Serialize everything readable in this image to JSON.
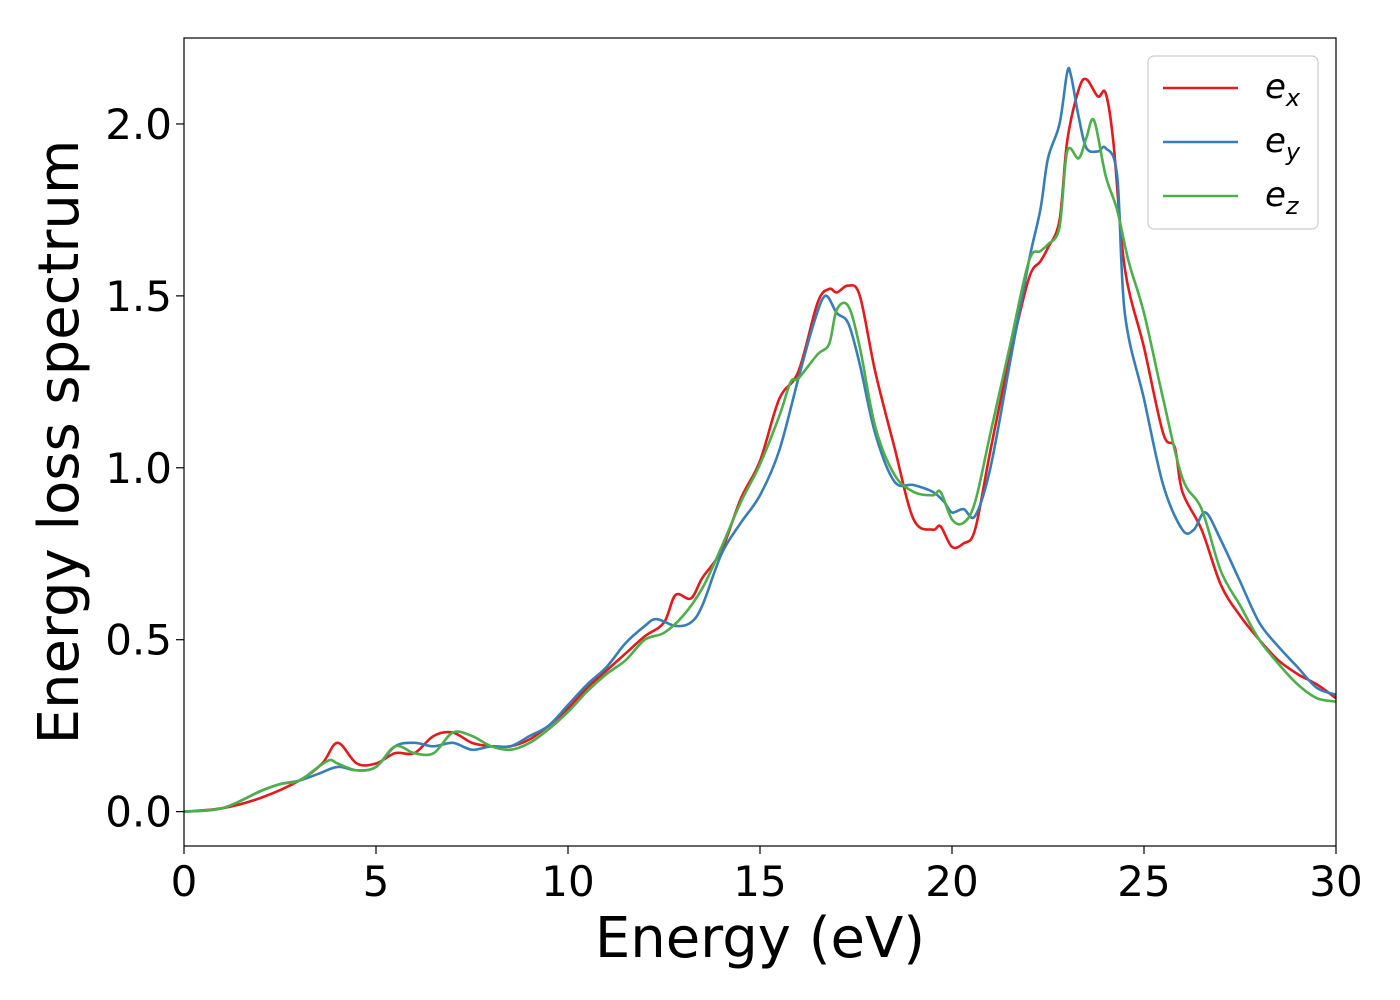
{
  "chart_data": {
    "type": "line",
    "xlabel": "Energy (eV)",
    "ylabel": "Energy loss spectrum",
    "xlim": [
      0,
      30
    ],
    "ylim": [
      -0.1,
      2.25
    ],
    "xticks": [
      0,
      5,
      10,
      15,
      20,
      25,
      30
    ],
    "xtick_labels": [
      "0",
      "5",
      "10",
      "15",
      "20",
      "25",
      "30"
    ],
    "yticks": [
      0.0,
      0.5,
      1.0,
      1.5,
      2.0
    ],
    "ytick_labels": [
      "0.0",
      "0.5",
      "1.0",
      "1.5",
      "2.0"
    ],
    "grid": false,
    "legend_position": "upper right",
    "series": [
      {
        "name": "e_x",
        "legend_base": "e",
        "legend_sub": "x",
        "color": "#e41a1c",
        "x": [
          0,
          1,
          2,
          3,
          3.6,
          4.0,
          4.5,
          5.0,
          5.5,
          6.0,
          6.5,
          7.0,
          7.5,
          8.0,
          8.5,
          9.0,
          9.5,
          10.0,
          10.5,
          11.0,
          11.5,
          12.0,
          12.5,
          12.8,
          13.2,
          13.5,
          14.0,
          14.5,
          15.0,
          15.5,
          16.0,
          16.5,
          16.8,
          17.0,
          17.3,
          17.6,
          18.0,
          18.5,
          19.0,
          19.5,
          19.7,
          20.0,
          20.3,
          20.6,
          21.0,
          21.5,
          22.0,
          22.3,
          22.5,
          22.8,
          23.0,
          23.3,
          23.5,
          23.8,
          24.0,
          24.2,
          24.5,
          25.0,
          25.5,
          25.8,
          26.0,
          26.5,
          27.0,
          27.5,
          28.0,
          28.5,
          29.0,
          29.5,
          30.0
        ],
        "y": [
          0.0,
          0.01,
          0.04,
          0.09,
          0.14,
          0.2,
          0.14,
          0.14,
          0.17,
          0.17,
          0.22,
          0.23,
          0.2,
          0.19,
          0.19,
          0.21,
          0.25,
          0.3,
          0.36,
          0.41,
          0.46,
          0.51,
          0.55,
          0.63,
          0.62,
          0.68,
          0.76,
          0.91,
          1.02,
          1.2,
          1.28,
          1.48,
          1.52,
          1.51,
          1.53,
          1.5,
          1.28,
          1.06,
          0.85,
          0.82,
          0.83,
          0.77,
          0.78,
          0.82,
          1.05,
          1.32,
          1.55,
          1.6,
          1.64,
          1.72,
          1.95,
          2.1,
          2.13,
          2.08,
          2.09,
          1.95,
          1.58,
          1.35,
          1.1,
          1.06,
          0.93,
          0.82,
          0.66,
          0.57,
          0.5,
          0.44,
          0.4,
          0.37,
          0.33
        ]
      },
      {
        "name": "e_y",
        "legend_base": "e",
        "legend_sub": "y",
        "color": "#377eb8",
        "x": [
          0,
          1,
          2,
          2.5,
          3,
          3.5,
          4.0,
          4.5,
          5.0,
          5.5,
          6.0,
          6.5,
          7.0,
          7.5,
          8.0,
          8.5,
          9.0,
          9.5,
          10.0,
          10.5,
          11.0,
          11.5,
          12.0,
          12.3,
          12.8,
          13.2,
          13.5,
          14.0,
          14.5,
          15.0,
          15.5,
          16.0,
          16.4,
          16.7,
          17.0,
          17.3,
          17.6,
          18.0,
          18.5,
          19.0,
          19.5,
          19.8,
          20.0,
          20.3,
          20.6,
          21.0,
          21.5,
          22.0,
          22.3,
          22.5,
          22.8,
          23.0,
          23.1,
          23.3,
          23.5,
          23.8,
          24.0,
          24.3,
          24.5,
          25.0,
          25.5,
          26.0,
          26.3,
          26.6,
          27.0,
          27.5,
          28.0,
          28.5,
          29.0,
          29.5,
          30.0
        ],
        "y": [
          0.0,
          0.01,
          0.06,
          0.08,
          0.09,
          0.11,
          0.13,
          0.12,
          0.13,
          0.19,
          0.2,
          0.19,
          0.2,
          0.18,
          0.19,
          0.19,
          0.22,
          0.25,
          0.31,
          0.37,
          0.42,
          0.49,
          0.54,
          0.56,
          0.54,
          0.55,
          0.6,
          0.75,
          0.84,
          0.92,
          1.05,
          1.26,
          1.42,
          1.5,
          1.45,
          1.42,
          1.3,
          1.1,
          0.96,
          0.95,
          0.93,
          0.9,
          0.87,
          0.88,
          0.86,
          1.0,
          1.3,
          1.6,
          1.75,
          1.9,
          2.0,
          2.15,
          2.14,
          2.02,
          1.93,
          1.92,
          1.93,
          1.85,
          1.45,
          1.2,
          0.95,
          0.82,
          0.82,
          0.87,
          0.79,
          0.67,
          0.55,
          0.48,
          0.42,
          0.36,
          0.34
        ]
      },
      {
        "name": "e_z",
        "legend_base": "e",
        "legend_sub": "z",
        "color": "#4daf4a",
        "x": [
          0,
          1,
          2,
          2.5,
          3,
          3.5,
          3.8,
          4.0,
          4.5,
          5.0,
          5.5,
          6.0,
          6.5,
          7.0,
          7.5,
          8.0,
          8.5,
          9.0,
          9.5,
          10.0,
          10.5,
          11.0,
          11.5,
          12.0,
          12.5,
          13.0,
          13.5,
          14.0,
          14.5,
          15.0,
          15.5,
          15.8,
          16.0,
          16.5,
          16.8,
          17.0,
          17.3,
          17.6,
          18.0,
          18.5,
          19.0,
          19.5,
          19.7,
          20.0,
          20.3,
          20.6,
          21.0,
          21.5,
          22.0,
          22.3,
          22.5,
          22.8,
          23.0,
          23.3,
          23.5,
          23.7,
          24.0,
          24.3,
          24.6,
          25.0,
          25.5,
          26.0,
          26.5,
          27.0,
          27.5,
          28.0,
          28.5,
          29.0,
          29.5,
          30.0
        ],
        "y": [
          0.0,
          0.01,
          0.06,
          0.08,
          0.09,
          0.13,
          0.15,
          0.14,
          0.12,
          0.13,
          0.19,
          0.17,
          0.17,
          0.23,
          0.22,
          0.19,
          0.18,
          0.2,
          0.24,
          0.29,
          0.35,
          0.4,
          0.44,
          0.5,
          0.52,
          0.57,
          0.65,
          0.77,
          0.9,
          1.01,
          1.15,
          1.25,
          1.26,
          1.33,
          1.36,
          1.46,
          1.47,
          1.35,
          1.12,
          0.98,
          0.93,
          0.92,
          0.93,
          0.85,
          0.84,
          0.9,
          1.1,
          1.35,
          1.6,
          1.63,
          1.65,
          1.7,
          1.92,
          1.9,
          1.96,
          2.01,
          1.85,
          1.75,
          1.6,
          1.45,
          1.2,
          0.97,
          0.88,
          0.7,
          0.6,
          0.5,
          0.43,
          0.37,
          0.33,
          0.32
        ]
      }
    ]
  }
}
